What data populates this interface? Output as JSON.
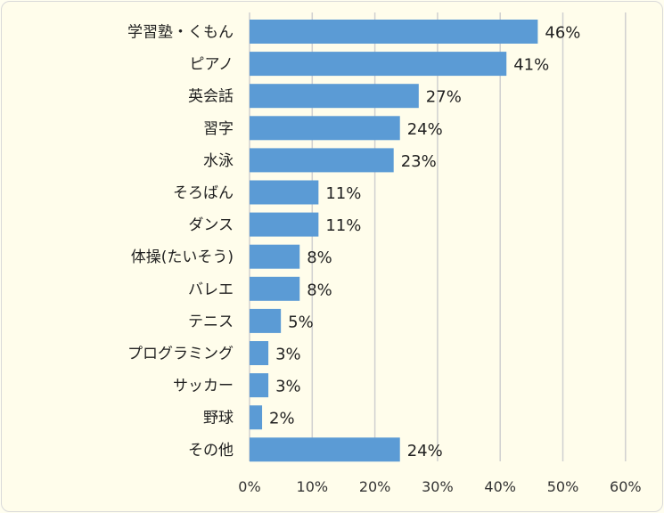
{
  "chart_data": {
    "type": "bar",
    "orientation": "horizontal",
    "categories": [
      "学習塾・くもん",
      "ピアノ",
      "英会話",
      "習字",
      "水泳",
      "そろばん",
      "ダンス",
      "体操(たいそう)",
      "バレエ",
      "テニス",
      "プログラミング",
      "サッカー",
      "野球",
      "その他"
    ],
    "values": [
      46,
      41,
      27,
      24,
      23,
      11,
      11,
      8,
      8,
      5,
      3,
      3,
      2,
      24
    ],
    "value_labels": [
      "46%",
      "41%",
      "27%",
      "24%",
      "23%",
      "11%",
      "11%",
      "8%",
      "8%",
      "5%",
      "3%",
      "3%",
      "2%",
      "24%"
    ],
    "x_ticks": [
      "0%",
      "10%",
      "20%",
      "30%",
      "40%",
      "50%",
      "60%"
    ],
    "xlim": [
      0,
      60
    ],
    "grid": true,
    "bar_color": "#5b9bd5",
    "title": "",
    "xlabel": "",
    "ylabel": ""
  }
}
